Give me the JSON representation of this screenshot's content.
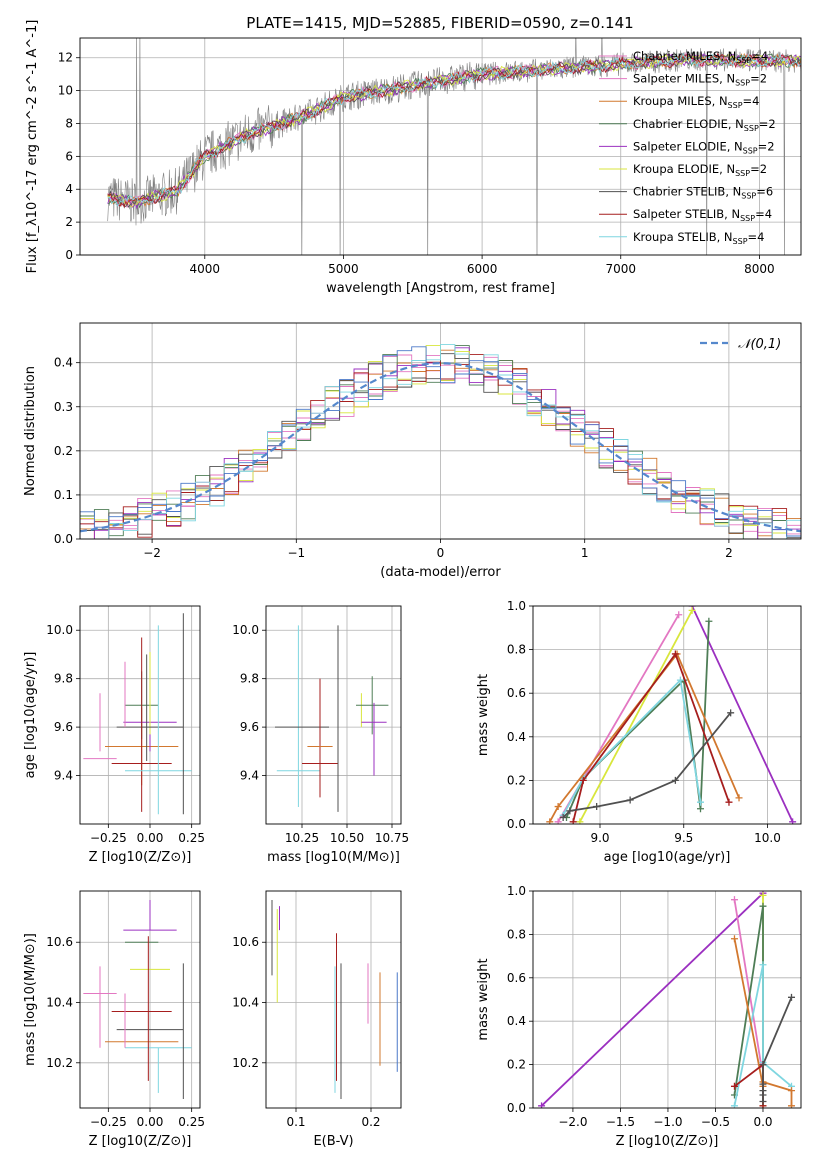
{
  "figure": {
    "title": "PLATE=1415, MJD=52885, FIBERID=0590, z=0.141"
  },
  "colors": {
    "Chabrier MILES": "#e377c2",
    "Salpeter MILES": "#e377c2",
    "Kroupa MILES": "#d2782f",
    "Chabrier ELODIE": "#4e7d56",
    "Salpeter ELODIE": "#9b30c0",
    "Kroupa ELODIE": "#d8e63c",
    "Chabrier STELIB": "#505050",
    "Salpeter STELIB": "#a61e1e",
    "Kroupa STELIB": "#7fd6e0",
    "data": "#808080",
    "gauss": "#5588cc",
    "extra": "#4a78c8"
  },
  "chart_data": [
    {
      "id": "spectrum",
      "type": "line",
      "title": "PLATE=1415, MJD=52885, FIBERID=0590, z=0.141",
      "xlabel": "wavelength [Angstrom, rest frame]",
      "ylabel": "Flux [f_λ10^-17 erg cm^-2 s^-1 A^-1]",
      "xlim": [
        3100,
        8300
      ],
      "ylim": [
        0,
        13.2
      ],
      "xticks": [
        4000,
        5000,
        6000,
        7000,
        8000
      ],
      "yticks": [
        0,
        2,
        4,
        6,
        8,
        10,
        12
      ],
      "legend_position": "top-right",
      "legend": [
        {
          "base": "Chabrier MILES",
          "n": "4"
        },
        {
          "base": "Salpeter MILES",
          "n": "2"
        },
        {
          "base": "Kroupa MILES",
          "n": "4"
        },
        {
          "base": "Chabrier ELODIE",
          "n": "2"
        },
        {
          "base": "Salpeter ELODIE",
          "n": "2"
        },
        {
          "base": "Kroupa ELODIE",
          "n": "2"
        },
        {
          "base": "Chabrier STELIB",
          "n": "6"
        },
        {
          "base": "Salpeter STELIB",
          "n": "4"
        },
        {
          "base": "Kroupa STELIB",
          "n": "4"
        }
      ],
      "continuum": {
        "x": [
          3300,
          3500,
          3800,
          4000,
          4300,
          4700,
          5000,
          5500,
          6000,
          6500,
          7000,
          7500,
          8000,
          8300
        ],
        "y": [
          3.5,
          3.2,
          3.9,
          6.0,
          7.3,
          8.4,
          9.6,
          10.3,
          11.0,
          11.3,
          11.6,
          11.9,
          11.8,
          11.8
        ]
      }
    },
    {
      "id": "residuals",
      "type": "line",
      "xlabel": "(data-model)/error",
      "ylabel": "Normed distribution",
      "xlim": [
        -2.5,
        2.5
      ],
      "ylim": [
        0,
        0.49
      ],
      "xticks": [
        -2,
        -1,
        0,
        1,
        2
      ],
      "yticks": [
        0.0,
        0.1,
        0.2,
        0.3,
        0.4
      ],
      "legend": "𝒩(0,1)",
      "legend_position": "top-right"
    },
    {
      "id": "age-vs-Z",
      "type": "scatter",
      "xlabel": "Z [log10(Z/Z⊙)]",
      "ylabel": "age  [log10(age/yr)]",
      "xlim": [
        -0.42,
        0.3
      ],
      "ylim": [
        9.2,
        10.1
      ],
      "xticks": [
        -0.25,
        0.0,
        0.25
      ],
      "yticks": [
        9.4,
        9.6,
        9.8,
        10.0
      ],
      "points": [
        {
          "model": "Salpeter MILES",
          "x": -0.3,
          "y": 9.62,
          "xerr": 0.0,
          "yerr_low": 0.12,
          "yerr_high": 0.12
        },
        {
          "model": "Chabrier MILES",
          "x": -0.3,
          "y": 9.47,
          "xerr": 0.1,
          "yerr_low": 0.0,
          "yerr_high": 0.0
        },
        {
          "model": "Kroupa MILES",
          "x": -0.05,
          "y": 9.52,
          "xerr": 0.22,
          "yerr_low": 0.16,
          "yerr_high": 0.16
        },
        {
          "model": "Chabrier ELODIE",
          "x": -0.05,
          "y": 9.69,
          "xerr": 0.1,
          "yerr_low": 0.14,
          "yerr_high": 0.14
        },
        {
          "model": "Salpeter ELODIE",
          "x": 0.0,
          "y": 9.62,
          "xerr": 0.16,
          "yerr_low": 0.12,
          "yerr_high": 0.0
        },
        {
          "model": "Kroupa ELODIE",
          "x": 0.0,
          "y": 9.75,
          "xerr": 0.0,
          "yerr_low": 0.18,
          "yerr_high": 0.16
        },
        {
          "model": "Chabrier STELIB",
          "x": 0.0,
          "y": 9.6,
          "xerr": 0.2,
          "yerr_low": 0.0,
          "yerr_high": 0.0
        },
        {
          "model": "Salpeter STELIB",
          "x": -0.05,
          "y": 9.45,
          "xerr": 0.18,
          "yerr_low": 0.2,
          "yerr_high": 0.52
        },
        {
          "model": "Kroupa STELIB",
          "x": 0.05,
          "y": 9.42,
          "xerr": 0.2,
          "yerr_low": 0.18,
          "yerr_high": 0.6
        },
        {
          "model": "Chabrier STELIB",
          "x": 0.2,
          "y": 9.6,
          "xerr": 0.0,
          "yerr_low": 0.36,
          "yerr_high": 0.47
        },
        {
          "model": "Salpeter MILES",
          "x": -0.15,
          "y": 9.6,
          "xerr": 0.0,
          "yerr_low": 0.0,
          "yerr_high": 0.27
        },
        {
          "model": "Chabrier STELIB",
          "x": -0.02,
          "y": 9.6,
          "xerr": 0.0,
          "yerr_low": 0.14,
          "yerr_high": 0.3
        }
      ]
    },
    {
      "id": "age-vs-mass",
      "type": "scatter",
      "xlabel": "mass [log10(M/M⊙)]",
      "ylabel": "",
      "xlim": [
        10.05,
        10.8
      ],
      "ylim": [
        9.2,
        10.1
      ],
      "xticks": [
        10.25,
        10.5,
        10.75
      ],
      "yticks": [
        9.4,
        9.6,
        9.8,
        10.0
      ],
      "points": [
        {
          "model": "Kroupa STELIB",
          "x": 10.23,
          "y": 9.42,
          "xerr": 0.12,
          "yerr_low": 0.15,
          "yerr_high": 0.6
        },
        {
          "model": "Chabrier STELIB",
          "x": 10.25,
          "y": 9.6,
          "xerr": 0.15,
          "yerr_low": 0.0,
          "yerr_high": 0.0
        },
        {
          "model": "Salpeter STELIB",
          "x": 10.35,
          "y": 9.45,
          "xerr": 0.1,
          "yerr_low": 0.14,
          "yerr_high": 0.35
        },
        {
          "model": "Kroupa MILES",
          "x": 10.35,
          "y": 9.52,
          "xerr": 0.07,
          "yerr_low": 0.0,
          "yerr_high": 0.0
        },
        {
          "model": "Chabrier STELIB",
          "x": 10.45,
          "y": 9.6,
          "xerr": 0.0,
          "yerr_low": 0.35,
          "yerr_high": 0.42
        },
        {
          "model": "Kroupa ELODIE",
          "x": 10.58,
          "y": 9.6,
          "xerr": 0.0,
          "yerr_low": 0.0,
          "yerr_high": 0.14
        },
        {
          "model": "Chabrier ELODIE",
          "x": 10.64,
          "y": 9.69,
          "xerr": 0.09,
          "yerr_low": 0.12,
          "yerr_high": 0.12
        },
        {
          "model": "Salpeter ELODIE",
          "x": 10.65,
          "y": 9.62,
          "xerr": 0.07,
          "yerr_low": 0.22,
          "yerr_high": 0.08
        }
      ]
    },
    {
      "id": "sfh-age",
      "type": "line",
      "xlabel": "age  [log10(age/yr)]",
      "ylabel": "mass weight",
      "xlim": [
        8.6,
        10.2
      ],
      "ylim": [
        0,
        1.0
      ],
      "xticks": [
        9.0,
        9.5,
        10.0
      ],
      "yticks": [
        0.0,
        0.2,
        0.4,
        0.6,
        0.8,
        1.0
      ],
      "series": [
        {
          "model": "Salpeter ELODIE",
          "x": [
            9.55,
            10.15
          ],
          "y": [
            1.0,
            0.01
          ]
        },
        {
          "model": "Chabrier MILES",
          "x": [
            8.75,
            9.47
          ],
          "y": [
            0.01,
            0.96
          ]
        },
        {
          "model": "Kroupa ELODIE",
          "x": [
            8.88,
            9.55
          ],
          "y": [
            0.01,
            0.98
          ]
        },
        {
          "model": "Chabrier ELODIE",
          "x": [
            8.8,
            8.9,
            9.5,
            9.6,
            9.65
          ],
          "y": [
            0.03,
            0.21,
            0.66,
            0.07,
            0.93
          ]
        },
        {
          "model": "Kroupa STELIB",
          "x": [
            8.78,
            8.9,
            9.48,
            9.6
          ],
          "y": [
            0.04,
            0.21,
            0.66,
            0.1
          ]
        },
        {
          "model": "Kroupa MILES",
          "x": [
            8.7,
            8.75,
            9.46,
            9.83
          ],
          "y": [
            0.01,
            0.08,
            0.78,
            0.12
          ]
        },
        {
          "model": "Salpeter STELIB",
          "x": [
            8.84,
            8.9,
            9.45,
            9.77
          ],
          "y": [
            0.01,
            0.2,
            0.78,
            0.1
          ]
        },
        {
          "model": "Chabrier STELIB",
          "x": [
            8.78,
            8.82,
            8.98,
            9.18,
            9.45,
            9.78
          ],
          "y": [
            0.03,
            0.06,
            0.08,
            0.11,
            0.2,
            0.51
          ]
        }
      ]
    },
    {
      "id": "mass-vs-Z",
      "type": "scatter",
      "xlabel": "Z [log10(Z/Z⊙)]",
      "ylabel": "mass [log10(M/M⊙)]",
      "xlim": [
        -0.42,
        0.3
      ],
      "ylim": [
        10.05,
        10.77
      ],
      "xticks": [
        -0.25,
        0.0,
        0.25
      ],
      "yticks": [
        10.2,
        10.4,
        10.6
      ],
      "points": [
        {
          "model": "Chabrier MILES",
          "x": -0.3,
          "y": 10.43,
          "xerr": 0.1,
          "yerr_low": 0.0,
          "yerr_high": 0.0
        },
        {
          "model": "Salpeter MILES",
          "x": -0.3,
          "y": 10.43,
          "xerr": 0.0,
          "yerr_low": 0.18,
          "yerr_high": 0.09
        },
        {
          "model": "Kroupa MILES",
          "x": -0.05,
          "y": 10.27,
          "xerr": 0.22,
          "yerr_low": 0.0,
          "yerr_high": 0.0
        },
        {
          "model": "Kroupa STELIB",
          "x": 0.05,
          "y": 10.25,
          "xerr": 0.2,
          "yerr_low": 0.15,
          "yerr_high": 0.0
        },
        {
          "model": "Chabrier STELIB",
          "x": 0.0,
          "y": 10.31,
          "xerr": 0.2,
          "yerr_low": 0.0,
          "yerr_high": 0.0
        },
        {
          "model": "Salpeter STELIB",
          "x": -0.05,
          "y": 10.37,
          "xerr": 0.18,
          "yerr_low": 0.0,
          "yerr_high": 0.0
        },
        {
          "model": "Kroupa ELODIE",
          "x": 0.0,
          "y": 10.51,
          "xerr": 0.12,
          "yerr_low": 0.0,
          "yerr_high": 0.0
        },
        {
          "model": "Chabrier ELODIE",
          "x": -0.05,
          "y": 10.6,
          "xerr": 0.1,
          "yerr_low": 0.0,
          "yerr_high": 0.0
        },
        {
          "model": "Salpeter ELODIE",
          "x": 0.0,
          "y": 10.64,
          "xerr": 0.16,
          "yerr_low": 0.0,
          "yerr_high": 0.1
        },
        {
          "model": "Chabrier STELIB",
          "x": 0.2,
          "y": 10.3,
          "xerr": 0.0,
          "yerr_low": 0.22,
          "yerr_high": 0.23
        },
        {
          "model": "Salpeter MILES",
          "x": -0.15,
          "y": 10.35,
          "xerr": 0.0,
          "yerr_low": 0.1,
          "yerr_high": 0.08
        },
        {
          "model": "Salpeter STELIB",
          "x": -0.01,
          "y": 10.4,
          "xerr": 0.0,
          "yerr_low": 0.26,
          "yerr_high": 0.22
        }
      ]
    },
    {
      "id": "mass-vs-ebv",
      "type": "scatter",
      "xlabel": "E(B-V)",
      "ylabel": "",
      "xlim": [
        0.06,
        0.24
      ],
      "ylim": [
        10.05,
        10.77
      ],
      "xticks": [
        0.1,
        0.2
      ],
      "yticks": [
        10.2,
        10.4,
        10.6
      ],
      "bars": [
        {
          "model": "Chabrier STELIB",
          "x": 0.068,
          "low": 10.49,
          "high": 10.74
        },
        {
          "model": "Kroupa ELODIE",
          "x": 0.075,
          "low": 10.4,
          "high": 10.71
        },
        {
          "model": "Salpeter ELODIE",
          "x": 0.078,
          "low": 10.64,
          "high": 10.72
        },
        {
          "model": "Kroupa STELIB",
          "x": 0.152,
          "low": 10.1,
          "high": 10.52
        },
        {
          "model": "Salpeter STELIB",
          "x": 0.154,
          "low": 10.14,
          "high": 10.63
        },
        {
          "model": "Chabrier STELIB",
          "x": 0.16,
          "low": 10.08,
          "high": 10.53
        },
        {
          "model": "Chabrier MILES",
          "x": 0.196,
          "low": 10.33,
          "high": 10.53
        },
        {
          "model": "Kroupa MILES",
          "x": 0.212,
          "low": 10.19,
          "high": 10.5
        },
        {
          "model": "extra",
          "x": 0.235,
          "low": 10.17,
          "high": 10.5
        }
      ]
    },
    {
      "id": "sfh-Z",
      "type": "line",
      "xlabel": "Z [log10(Z/Z⊙)]",
      "ylabel": "mass weight",
      "xlim": [
        -2.42,
        0.4
      ],
      "ylim": [
        0,
        1.0
      ],
      "xticks": [
        -2.0,
        -1.5,
        -1.0,
        -0.5,
        0.0
      ],
      "xtick_labels": [
        "−2.0",
        "−1.5",
        "−1.0",
        "−0.5",
        "0.0"
      ],
      "yticks": [
        0.0,
        0.2,
        0.4,
        0.6,
        0.8,
        1.0
      ],
      "series": [
        {
          "model": "Salpeter ELODIE",
          "x": [
            -2.33,
            0.0
          ],
          "y": [
            0.01,
            0.99
          ]
        },
        {
          "model": "Chabrier MILES",
          "x": [
            -0.3,
            -0.02
          ],
          "y": [
            0.96,
            0.2
          ]
        },
        {
          "model": "Kroupa ELODIE",
          "x": [
            0.0,
            0.0
          ],
          "y": [
            0.98,
            0.01
          ]
        },
        {
          "model": "Chabrier ELODIE",
          "x": [
            -0.3,
            0.0,
            0.0
          ],
          "y": [
            0.06,
            0.93,
            0.2
          ]
        },
        {
          "model": "Kroupa STELIB",
          "x": [
            -0.3,
            0.0,
            0.0,
            0.3
          ],
          "y": [
            0.01,
            0.66,
            0.21,
            0.1
          ]
        },
        {
          "model": "Kroupa MILES",
          "x": [
            -0.3,
            0.0,
            0.0,
            0.3,
            0.3
          ],
          "y": [
            0.78,
            0.1,
            0.12,
            0.08,
            0.01
          ]
        },
        {
          "model": "Salpeter STELIB",
          "x": [
            -0.3,
            0.0,
            0.0
          ],
          "y": [
            0.1,
            0.2,
            0.01
          ]
        },
        {
          "model": "Chabrier STELIB",
          "x": [
            0.0,
            0.0,
            0.0,
            0.0,
            0.0,
            0.3
          ],
          "y": [
            0.03,
            0.06,
            0.08,
            0.11,
            0.2,
            0.51
          ]
        }
      ]
    }
  ]
}
